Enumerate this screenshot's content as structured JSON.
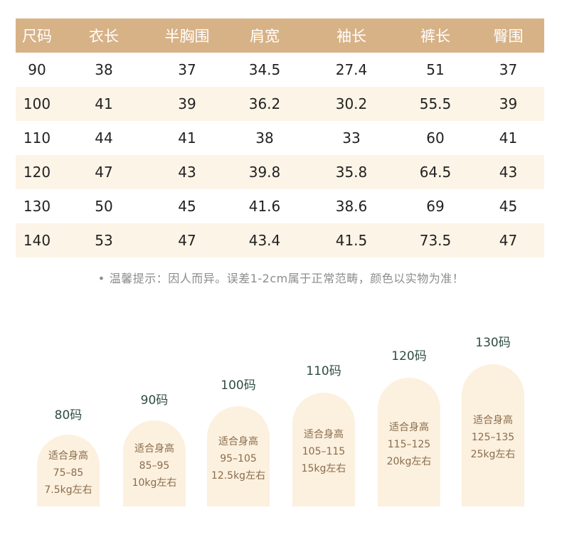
{
  "table": {
    "headers": [
      "尺码",
      "衣长",
      "半胸围",
      "肩宽",
      "袖长",
      "裤长",
      "臀围"
    ],
    "rows": [
      [
        "90",
        "38",
        "37",
        "34.5",
        "27.4",
        "51",
        "37"
      ],
      [
        "100",
        "41",
        "39",
        "36.2",
        "30.2",
        "55.5",
        "39"
      ],
      [
        "110",
        "44",
        "41",
        "38",
        "33",
        "60",
        "41"
      ],
      [
        "120",
        "47",
        "43",
        "39.8",
        "35.8",
        "64.5",
        "43"
      ],
      [
        "130",
        "50",
        "45",
        "41.6",
        "38.6",
        "69",
        "45"
      ],
      [
        "140",
        "53",
        "47",
        "43.4",
        "41.5",
        "73.5",
        "47"
      ]
    ]
  },
  "note": {
    "bullet": "•",
    "text": "温馨提示：因人而异。误差1-2cm属于正常范畴，颜色以实物为准！"
  },
  "size_chart": [
    {
      "size": "80码",
      "caption": "适合身高",
      "height": "75–85",
      "weight": "7.5kg左右"
    },
    {
      "size": "90码",
      "caption": "适合身高",
      "height": "85–95",
      "weight": "10kg左右"
    },
    {
      "size": "100码",
      "caption": "适合身高",
      "height": "95–105",
      "weight": "12.5kg左右"
    },
    {
      "size": "110码",
      "caption": "适合身高",
      "height": "105–115",
      "weight": "15kg左右"
    },
    {
      "size": "120码",
      "caption": "适合身高",
      "height": "115–125",
      "weight": "20kg左右"
    },
    {
      "size": "130码",
      "caption": "适合身高",
      "height": "125–135",
      "weight": "25kg左右"
    }
  ],
  "colors": {
    "header_bg": "#d7b287",
    "alt_row_bg": "#fcf4e7",
    "pill_bg": "#fcf0df",
    "size_label": "#2f4d44",
    "pill_text": "#8a6d4b"
  }
}
